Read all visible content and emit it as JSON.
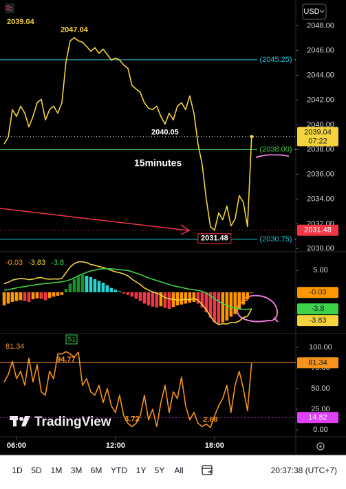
{
  "header": {
    "currency": "USD"
  },
  "brand": "TradingView",
  "toolbar": {
    "ranges": [
      "1D",
      "5D",
      "1M",
      "3M",
      "6M",
      "YTD",
      "1Y",
      "5Y",
      "All"
    ],
    "clock": "20:37:38 (UTC+7)"
  },
  "chart_data": [
    {
      "type": "line",
      "annotation": "15minutes",
      "color": "#f5d33c",
      "values": [
        2038.44,
        2039.0,
        2041.22,
        2040.67,
        2041.5,
        2040.94,
        2039.83,
        2040.67,
        2041.78,
        2042.06,
        2040.39,
        2041.22,
        2041.5,
        2040.94,
        2041.78,
        2045.11,
        2046.78,
        2047.04,
        2046.78,
        2046.67,
        2046.33,
        2045.94,
        2046.22,
        2045.78,
        2046.11,
        2045.67,
        2045.22,
        2045.39,
        2045.22,
        2044.83,
        2044.56,
        2043.17,
        2042.89,
        2042.61,
        2041.78,
        2041.33,
        2041.22,
        2041.5,
        2040.67,
        2040.05,
        2040.94,
        2040.39,
        2041.5,
        2041.78,
        2041.22,
        2042.33,
        2040.94,
        2038.44,
        2036.78,
        2034.0,
        2031.78,
        2031.48,
        2032.89,
        2032.33,
        2033.44,
        2031.83,
        2032.39,
        2034.28,
        2033.72,
        2031.78,
        2039.04
      ],
      "value_labels": [
        null,
        null,
        null,
        null,
        null,
        null,
        null,
        null,
        null,
        null,
        null,
        null,
        null,
        null,
        null,
        null,
        null,
        "2047.04",
        null,
        null,
        null,
        null,
        null,
        null,
        null,
        null,
        null,
        null,
        null,
        null,
        null,
        null,
        null,
        null,
        null,
        null,
        null,
        null,
        null,
        "2040.05",
        null,
        null,
        null,
        null,
        null,
        null,
        null,
        null,
        null,
        null,
        null,
        "2031.48",
        null,
        null,
        null,
        null,
        null,
        null,
        null,
        null,
        null
      ],
      "xlim": [
        -1,
        70.7
      ],
      "xticks": [
        {
          "value": 3,
          "label": "06:00"
        },
        {
          "value": 27,
          "label": "12:00"
        },
        {
          "value": 51,
          "label": "18:00"
        }
      ],
      "ylim": [
        2029.8,
        2049.8
      ],
      "yticks": [
        {
          "value": 2030,
          "label": "2030.00"
        },
        {
          "value": 2032,
          "label": "2032.00"
        },
        {
          "value": 2034,
          "label": "2034.00"
        },
        {
          "value": 2036,
          "label": "2036.00"
        },
        {
          "value": 2038,
          "label": "2038.00"
        },
        {
          "value": 2040,
          "label": "2040.00"
        },
        {
          "value": 2042,
          "label": "2042.00"
        },
        {
          "value": 2044,
          "label": "2044.00"
        },
        {
          "value": 2046,
          "label": "2046.00"
        },
        {
          "value": 2048,
          "label": "2048.00"
        }
      ],
      "levels": [
        {
          "value": 2045.25,
          "label": "(2045.25)",
          "color": "#26c6da"
        },
        {
          "value": 2038.0,
          "label": "(2038.00)",
          "color": "#3fd14a"
        },
        {
          "value": 2030.75,
          "label": "(2030.75)",
          "color": "#26c6da"
        }
      ],
      "price_line": {
        "value": 2031.48,
        "color": "#f23645"
      },
      "last_time": "07:22"
    },
    {
      "type": "macd",
      "ylim": [
        -9,
        9
      ],
      "yticks": [
        {
          "value": 5,
          "label": "5.00"
        }
      ],
      "histogram": {
        "values": [
          -3.0,
          -2.6,
          -2.2,
          -2.0,
          -1.8,
          -2.0,
          -2.2,
          -1.6,
          -1.4,
          -1.5,
          -1.8,
          -1.3,
          -1.0,
          -0.8,
          -0.6,
          0.8,
          2.0,
          3.0,
          3.6,
          4.0,
          3.8,
          3.5,
          3.0,
          2.6,
          2.2,
          1.6,
          1.0,
          0.6,
          0.2,
          -0.3,
          -0.6,
          -1.0,
          -1.5,
          -2.0,
          -2.6,
          -3.0,
          -3.3,
          -3.5,
          -3.2,
          -3.6,
          -3.8,
          -3.4,
          -3.0,
          -2.8,
          -2.6,
          -2.4,
          -2.2,
          -2.6,
          -3.5,
          -4.6,
          -5.8,
          -6.8,
          -7.2,
          -6.9,
          -6.5,
          -5.6,
          -5.0,
          -4.0,
          -2.8,
          -1.6,
          -0.03
        ],
        "colors": [
          "#1b8e2d",
          "#26d4d1",
          "#f23645",
          "#ff9800"
        ]
      },
      "macd": {
        "color": "#f5d33c",
        "values": [
          2.0,
          2.3,
          2.8,
          3.0,
          3.2,
          3.1,
          2.9,
          3.0,
          3.3,
          3.4,
          3.1,
          3.0,
          3.1,
          3.0,
          3.2,
          4.5,
          5.8,
          6.6,
          7.0,
          7.0,
          6.8,
          6.4,
          6.2,
          5.9,
          5.7,
          5.4,
          5.0,
          4.7,
          4.5,
          4.2,
          3.8,
          3.0,
          2.4,
          1.8,
          1.0,
          0.5,
          0.1,
          -0.2,
          -0.6,
          -1.2,
          -1.5,
          -1.6,
          -1.8,
          -1.7,
          -1.6,
          -1.7,
          -1.4,
          -1.8,
          -2.8,
          -4.0,
          -5.5,
          -6.8,
          -7.4,
          -7.2,
          -7.3,
          -6.9,
          -7.0,
          -6.6,
          -5.8,
          -5.5,
          -3.83
        ]
      },
      "signal": {
        "color": "#3fd14a",
        "values": [
          0.5,
          0.6,
          0.8,
          1.0,
          1.2,
          1.3,
          1.5,
          1.6,
          1.8,
          1.9,
          2.0,
          2.1,
          2.2,
          2.3,
          2.4,
          2.6,
          2.9,
          3.3,
          3.8,
          4.2,
          4.6,
          4.9,
          5.1,
          5.3,
          5.4,
          5.4,
          5.4,
          5.3,
          5.2,
          5.1,
          5.0,
          4.7,
          4.4,
          4.1,
          3.7,
          3.3,
          3.0,
          2.7,
          2.4,
          2.1,
          1.8,
          1.5,
          1.3,
          1.1,
          0.9,
          0.7,
          0.6,
          0.4,
          0.2,
          -0.2,
          -0.8,
          -1.5,
          -2.1,
          -2.6,
          -3.0,
          -3.4,
          -3.6,
          -3.8,
          -3.9,
          -3.9,
          -3.8
        ]
      }
    },
    {
      "type": "oscillator",
      "color": "#f7931a",
      "values": [
        58,
        67,
        83,
        62,
        71,
        54,
        87,
        58,
        79,
        46,
        42,
        71,
        62,
        92,
        92,
        94.77,
        92,
        88,
        94,
        54,
        62,
        46,
        42,
        54,
        33,
        50,
        29,
        21,
        42,
        17,
        8,
        3.72,
        8,
        17,
        42,
        12,
        25,
        4,
        33,
        54,
        21,
        46,
        38,
        64,
        29,
        12,
        21,
        8,
        4,
        7,
        2.68,
        17,
        29,
        38,
        54,
        21,
        54,
        71,
        50,
        23,
        81.34
      ],
      "value_labels": [
        null,
        null,
        null,
        null,
        null,
        null,
        null,
        null,
        null,
        null,
        null,
        null,
        null,
        null,
        null,
        "94.77",
        null,
        null,
        null,
        null,
        null,
        null,
        null,
        null,
        null,
        null,
        null,
        null,
        null,
        null,
        null,
        "3.72",
        null,
        null,
        null,
        null,
        null,
        null,
        null,
        null,
        null,
        null,
        null,
        null,
        null,
        null,
        null,
        null,
        null,
        null,
        "2.68",
        null,
        null,
        null,
        null,
        null,
        null,
        null,
        null,
        null,
        null
      ],
      "ylim": [
        -6.7,
        115
      ],
      "yticks": [
        {
          "value": 0,
          "label": "0.00"
        },
        {
          "value": 25,
          "label": "25.00"
        },
        {
          "value": 50,
          "label": "50.00"
        },
        {
          "value": 75,
          "label": "75.00"
        },
        {
          "value": 100,
          "label": "100.00"
        }
      ],
      "levels": [
        {
          "value": 14.82,
          "color": "#e040fb"
        }
      ],
      "marker": "S1"
    }
  ]
}
